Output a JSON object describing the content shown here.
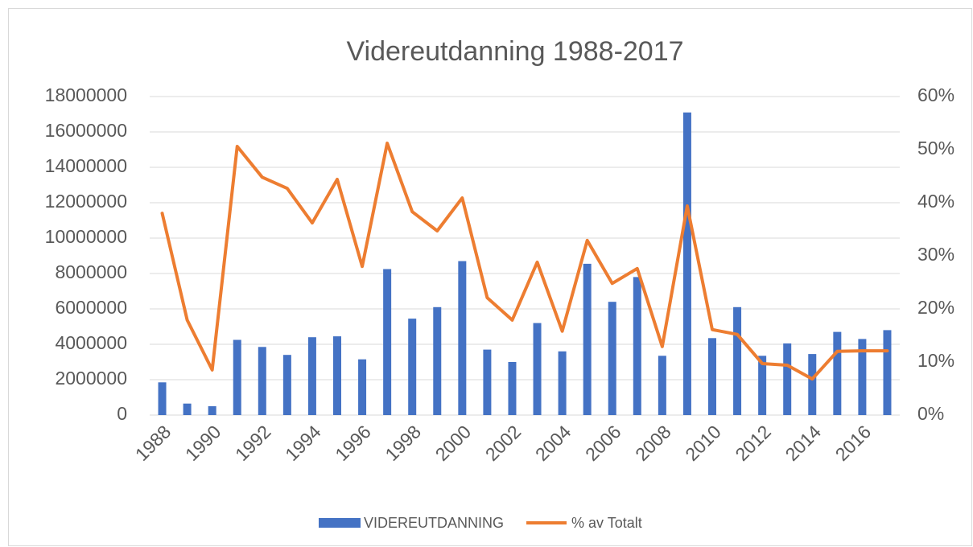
{
  "chart_data": {
    "type": "bar_line",
    "title": "Videreutdanning 1988-2017",
    "categories": [
      "1988",
      null,
      "1990",
      null,
      "1992",
      null,
      "1994",
      null,
      "1996",
      null,
      "1998",
      null,
      "2000",
      null,
      "2002",
      null,
      "2004",
      null,
      "2006",
      null,
      "2008",
      null,
      "2010",
      null,
      "2012",
      null,
      "2014",
      null,
      "2016",
      null
    ],
    "series": [
      {
        "name": "VIDEREUTDANNING",
        "color": "#4472c4",
        "type": "bar",
        "values": [
          1850000,
          650000,
          500000,
          4250000,
          3850000,
          3400000,
          4400000,
          4450000,
          3150000,
          8250000,
          5450000,
          6100000,
          8700000,
          3700000,
          3000000,
          5200000,
          3600000,
          8550000,
          6400000,
          7800000,
          3350000,
          17100000,
          4350000,
          6100000,
          3350000,
          4050000,
          3450000,
          4700000,
          4300000,
          4800000
        ]
      },
      {
        "name": "% av Totalt",
        "color": "#ed7d31",
        "type": "line",
        "axis": "y2",
        "values": [
          38.0,
          17.9,
          8.5,
          50.6,
          44.8,
          42.7,
          36.2,
          44.4,
          28.0,
          51.2,
          38.3,
          34.7,
          40.9,
          22.1,
          17.9,
          28.8,
          15.8,
          32.9,
          24.8,
          27.6,
          12.9,
          39.4,
          16.1,
          15.2,
          9.7,
          9.4,
          6.8,
          12.0,
          12.1,
          12.1
        ]
      }
    ],
    "ylim": [
      0,
      18000000
    ],
    "yticks": [
      0,
      2000000,
      4000000,
      6000000,
      8000000,
      10000000,
      12000000,
      14000000,
      16000000,
      18000000
    ],
    "y2lim": [
      0,
      60
    ],
    "y2ticks": [
      {
        "value": 0,
        "label": "0%"
      },
      {
        "value": 10,
        "label": "10%"
      },
      {
        "value": 20,
        "label": "20%"
      },
      {
        "value": 30,
        "label": "30%"
      },
      {
        "value": 40,
        "label": "40%"
      },
      {
        "value": 50,
        "label": "50%"
      },
      {
        "value": 60,
        "label": "60%"
      }
    ],
    "grid": true,
    "legend": "bottom"
  }
}
